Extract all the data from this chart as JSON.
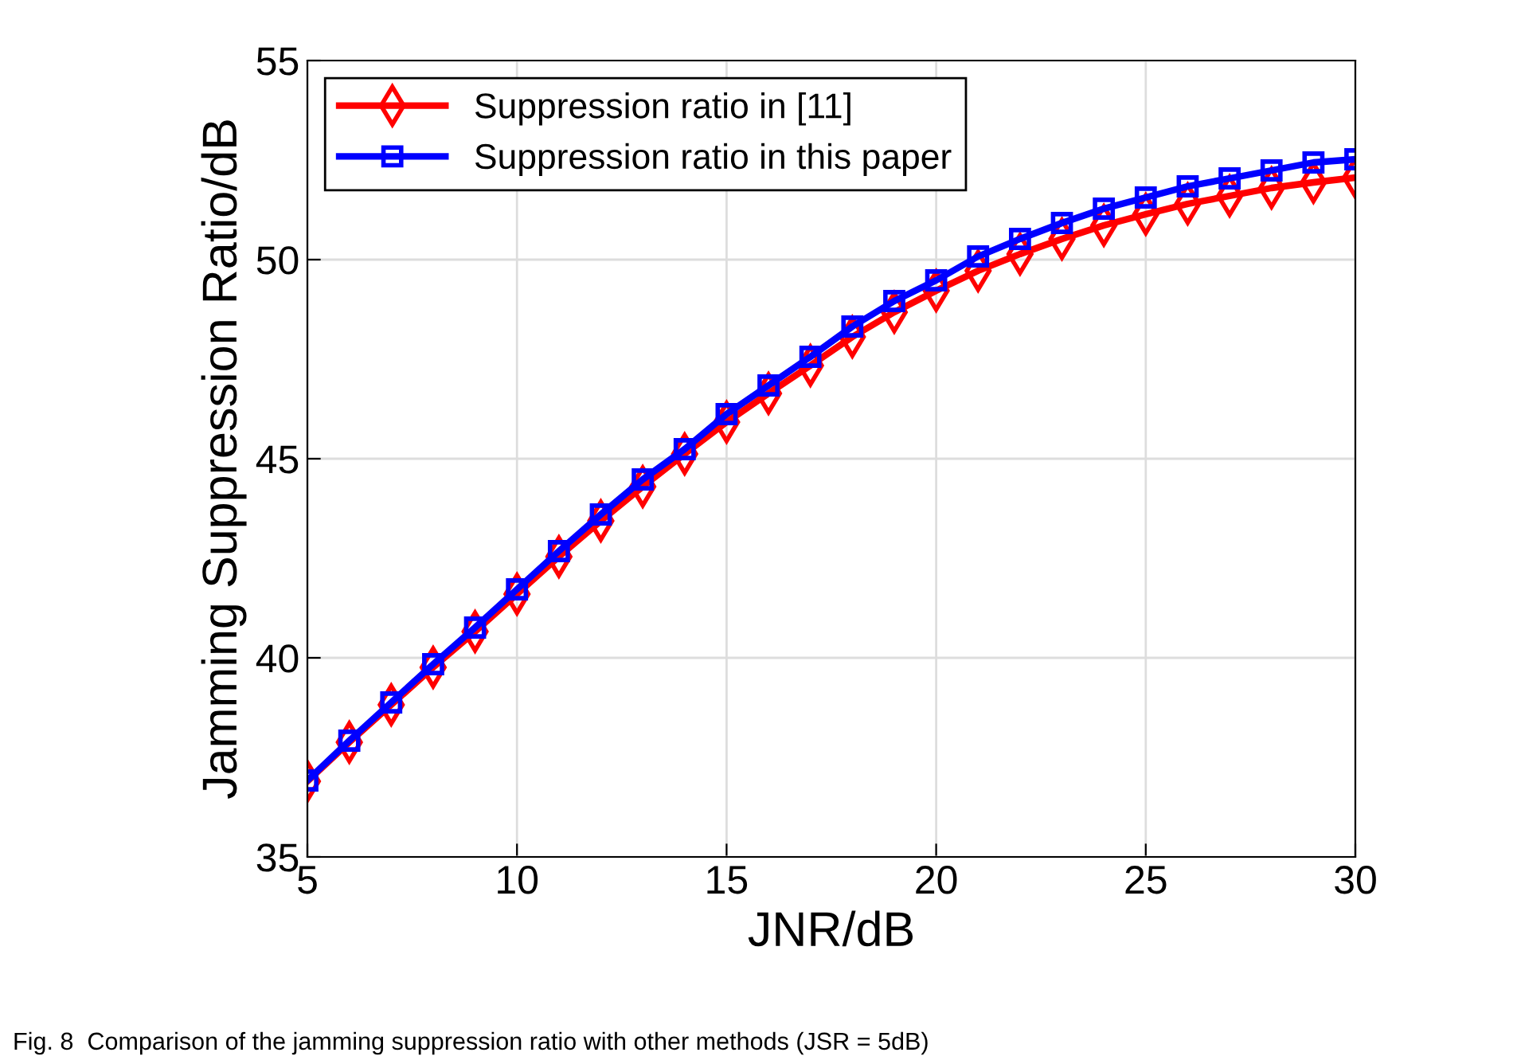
{
  "chart_data": {
    "type": "line",
    "xlabel": "JNR/dB",
    "ylabel": "Jamming Suppression Ratio/dB",
    "x": [
      5,
      6,
      7,
      8,
      9,
      10,
      11,
      12,
      13,
      14,
      15,
      16,
      17,
      18,
      19,
      20,
      21,
      22,
      23,
      24,
      25,
      26,
      27,
      28,
      29,
      30
    ],
    "series": [
      {
        "name": "Suppression ratio in [11]",
        "color": "#ff0000",
        "marker": "diamond",
        "values": [
          36.9,
          37.88,
          38.82,
          39.76,
          40.66,
          41.6,
          42.54,
          43.44,
          44.3,
          45.12,
          45.92,
          46.64,
          47.34,
          48.06,
          48.68,
          49.22,
          49.72,
          50.14,
          50.52,
          50.86,
          51.14,
          51.4,
          51.6,
          51.8,
          51.94,
          52.06
        ]
      },
      {
        "name": "Suppression ratio in this paper",
        "color": "#0000ff",
        "marker": "square",
        "values": [
          36.92,
          37.92,
          38.88,
          39.84,
          40.76,
          41.72,
          42.68,
          43.6,
          44.48,
          45.24,
          46.12,
          46.84,
          47.56,
          48.32,
          48.96,
          49.48,
          50.08,
          50.52,
          50.92,
          51.28,
          51.56,
          51.84,
          52.04,
          52.24,
          52.44,
          52.52
        ]
      }
    ],
    "xlim": [
      5,
      30
    ],
    "xticks": [
      5,
      10,
      15,
      20,
      25,
      30
    ],
    "ylim": [
      35,
      55
    ],
    "yticks": [
      35,
      40,
      45,
      50,
      55
    ],
    "grid": true,
    "legend": "top left",
    "line_style": "solid",
    "annotations": [
      "Fig. 8  Comparison of the jamming suppression ratio with other methods (JSR = 5dB)"
    ]
  }
}
